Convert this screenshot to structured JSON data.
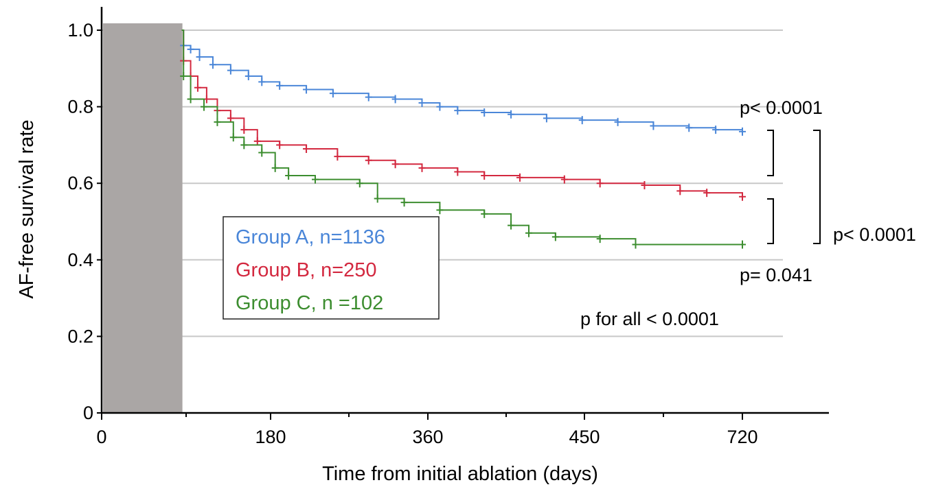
{
  "chart_data": {
    "type": "line",
    "title": "",
    "xlabel": "Time from initial ablation (days)",
    "ylabel": "AF-free survival rate",
    "x_ticks": [
      "0",
      "180",
      "360",
      "450",
      "720"
    ],
    "y_ticks": [
      "0",
      "0.2",
      "0.4",
      "0.6",
      "0.8",
      "1.0"
    ],
    "ylim": [
      0,
      1.0
    ],
    "grid": "horizontal",
    "blanking_period_days": [
      0,
      90
    ],
    "series": [
      {
        "name": "Group A, n=1136",
        "color": "#4a86d8",
        "x": [
          90,
          92,
          100,
          110,
          125,
          145,
          165,
          180,
          200,
          230,
          260,
          300,
          330,
          360,
          380,
          400,
          430,
          460,
          500,
          540,
          580,
          620,
          660,
          690,
          720
        ],
        "y": [
          1.0,
          0.96,
          0.95,
          0.93,
          0.91,
          0.895,
          0.88,
          0.865,
          0.855,
          0.845,
          0.835,
          0.825,
          0.82,
          0.81,
          0.8,
          0.79,
          0.785,
          0.78,
          0.77,
          0.765,
          0.76,
          0.75,
          0.745,
          0.74,
          0.735
        ]
      },
      {
        "name": "Group B, n=250",
        "color": "#d3283f",
        "x": [
          90,
          92,
          100,
          108,
          118,
          130,
          145,
          160,
          175,
          200,
          230,
          265,
          300,
          330,
          360,
          400,
          430,
          470,
          520,
          560,
          610,
          650,
          680,
          720
        ],
        "y": [
          1.0,
          0.92,
          0.88,
          0.85,
          0.82,
          0.79,
          0.77,
          0.74,
          0.71,
          0.7,
          0.69,
          0.67,
          0.66,
          0.65,
          0.64,
          0.63,
          0.62,
          0.615,
          0.61,
          0.6,
          0.595,
          0.58,
          0.575,
          0.565
        ]
      },
      {
        "name": "Group C, n =102",
        "color": "#3c8d2f",
        "x": [
          90,
          92,
          100,
          115,
          130,
          148,
          160,
          180,
          195,
          210,
          240,
          290,
          310,
          340,
          380,
          430,
          460,
          480,
          510,
          560,
          600,
          720
        ],
        "y": [
          1.0,
          0.88,
          0.82,
          0.8,
          0.76,
          0.72,
          0.7,
          0.68,
          0.64,
          0.62,
          0.61,
          0.6,
          0.56,
          0.55,
          0.53,
          0.52,
          0.49,
          0.47,
          0.46,
          0.455,
          0.44,
          0.44
        ]
      }
    ],
    "legend": {
      "placement": "center-left",
      "entries": [
        "Group A, n=1136",
        "Group B, n=250",
        "Group C, n =102"
      ]
    },
    "annotations": {
      "p_ab": "p< 0.0001",
      "p_ac": "p< 0.0001",
      "p_bc": "p= 0.041",
      "p_all": "p for all < 0.0001"
    }
  }
}
